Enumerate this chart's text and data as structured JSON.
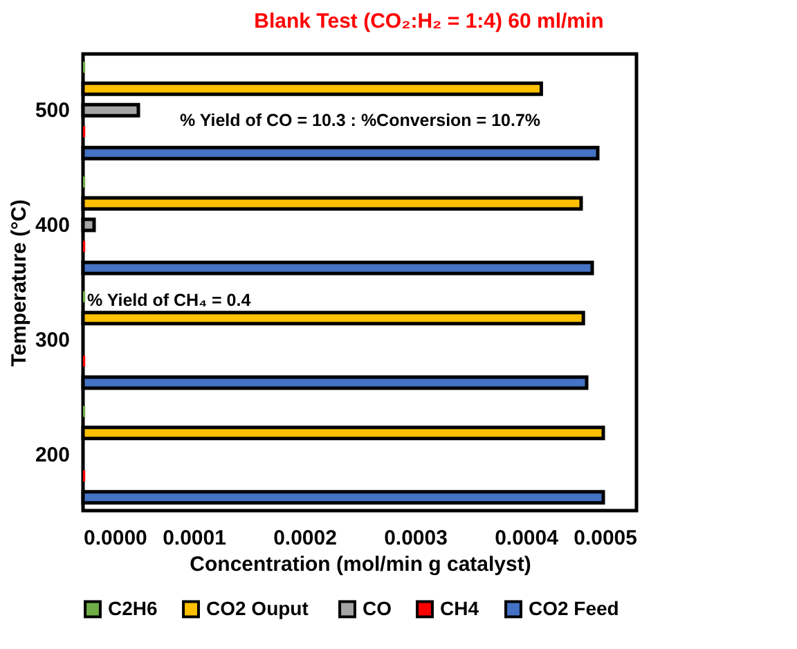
{
  "chart_data": {
    "type": "bar",
    "orientation": "horizontal",
    "title": "Blank Test (CO₂:H₂ = 1:4) 60 ml/min",
    "xlabel": "Concentration (mol/min g catalyst)",
    "ylabel": "Temperature (°C)",
    "categories": [
      "500",
      "400",
      "300",
      "200"
    ],
    "series": [
      {
        "name": "C2H6",
        "color": "#70ad47",
        "values": [
          2e-06,
          2e-06,
          2e-06,
          2e-06
        ]
      },
      {
        "name": "CO2  Ouput",
        "color": "#ffc000",
        "values": [
          0.000414,
          0.00045,
          0.000452,
          0.00047
        ]
      },
      {
        "name": "CO",
        "color": "#a5a5a5",
        "values": [
          5e-05,
          1e-05,
          null,
          null
        ]
      },
      {
        "name": "CH4",
        "color": "#ff0000",
        "values": [
          2e-06,
          2e-06,
          2e-06,
          2e-06
        ]
      },
      {
        "name": "CO2 Feed",
        "color": "#4472c4",
        "values": [
          0.000465,
          0.00046,
          0.000455,
          0.00047
        ]
      }
    ],
    "xlim": [
      0,
      0.0005
    ],
    "xticks": [
      {
        "value": 0,
        "label": "0.0000"
      },
      {
        "value": 0.0001,
        "label": "0.0001"
      },
      {
        "value": 0.0002,
        "label": "0.0002"
      },
      {
        "value": 0.0003,
        "label": "0.0003"
      },
      {
        "value": 0.0004,
        "label": "0.0004"
      },
      {
        "value": 0.0005,
        "label": "0.0005"
      }
    ],
    "annotations": [
      "% Yield of CO = 10.3 : %Conversion = 10.7%",
      "% Yield of CH₄ = 0.4"
    ],
    "grid": false,
    "legend": "bottom"
  }
}
